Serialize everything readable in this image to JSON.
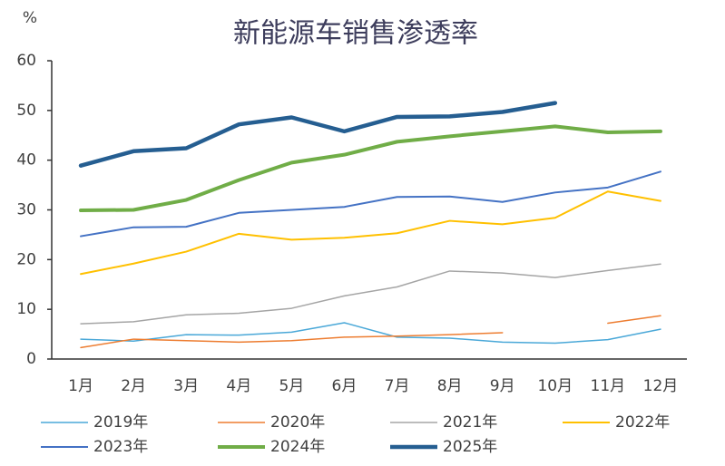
{
  "chart_data": {
    "type": "line",
    "title": "新能源车销售渗透率",
    "y_unit": "%",
    "categories": [
      "1月",
      "2月",
      "3月",
      "4月",
      "5月",
      "6月",
      "7月",
      "8月",
      "9月",
      "10月",
      "11月",
      "12月"
    ],
    "ylim": [
      0,
      60
    ],
    "yticks": [
      0,
      10,
      20,
      30,
      40,
      50,
      60
    ],
    "grid": false,
    "legend": "bottom",
    "series": [
      {
        "name": "2019年",
        "color": "#4aa8d8",
        "line_width": 1.5,
        "values": [
          4.0,
          3.6,
          4.9,
          4.8,
          5.4,
          7.3,
          4.4,
          4.2,
          3.4,
          3.2,
          3.9,
          6.0
        ]
      },
      {
        "name": "2020年",
        "color": "#ed7d31",
        "line_width": 1.5,
        "values": [
          2.3,
          4.0,
          3.7,
          3.4,
          3.7,
          4.4,
          4.6,
          4.9,
          5.3,
          null,
          7.2,
          8.7
        ]
      },
      {
        "name": "2021年",
        "color": "#a5a5a5",
        "line_width": 1.5,
        "values": [
          7.1,
          7.5,
          8.9,
          9.2,
          10.2,
          12.7,
          14.5,
          17.7,
          17.3,
          16.4,
          17.8,
          19.1
        ]
      },
      {
        "name": "2022年",
        "color": "#ffc000",
        "line_width": 2,
        "values": [
          17.1,
          19.2,
          21.6,
          25.2,
          24.0,
          24.4,
          25.3,
          27.8,
          27.1,
          28.4,
          33.7,
          31.8
        ]
      },
      {
        "name": "2023年",
        "color": "#4472c4",
        "line_width": 2,
        "values": [
          24.7,
          26.5,
          26.6,
          29.4,
          30.0,
          30.6,
          32.6,
          32.7,
          31.6,
          33.5,
          34.5,
          37.7
        ]
      },
      {
        "name": "2024年",
        "color": "#70ad47",
        "line_width": 4,
        "values": [
          29.9,
          30.0,
          32.0,
          36.0,
          39.5,
          41.1,
          43.7,
          44.8,
          45.8,
          46.8,
          45.6,
          45.8
        ]
      },
      {
        "name": "2025年",
        "color": "#255e91",
        "line_width": 4.5,
        "values": [
          38.9,
          41.8,
          42.4,
          47.2,
          48.6,
          45.8,
          48.7,
          48.8,
          49.7,
          51.5,
          null,
          null
        ]
      }
    ]
  }
}
